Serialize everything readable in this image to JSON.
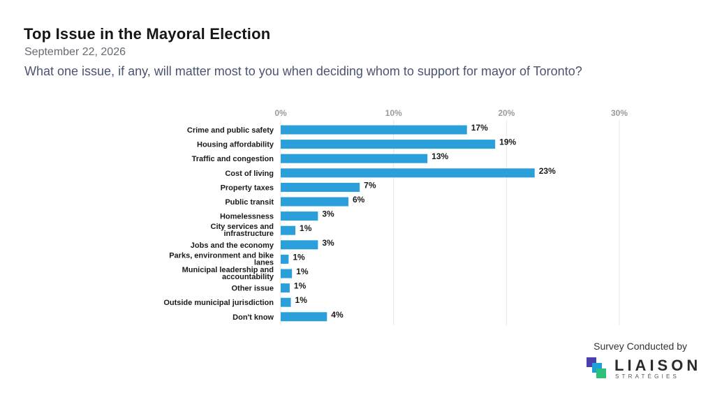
{
  "header": {
    "title": "Top Issue in the Mayoral Election",
    "date": "September 22, 2026",
    "question": "What one issue, if any, will matter most to you when deciding whom to support for mayor of Toronto?"
  },
  "chart_data": {
    "type": "bar",
    "orientation": "horizontal",
    "categories": [
      [
        "Crime and public safety"
      ],
      [
        "Housing affordability"
      ],
      [
        "Traffic and congestion"
      ],
      [
        "Cost of living"
      ],
      [
        "Property taxes"
      ],
      [
        "Public transit"
      ],
      [
        "Homelessness"
      ],
      [
        "City services and",
        "infrastructure"
      ],
      [
        "Jobs and the economy"
      ],
      [
        "Parks, environment and bike",
        "lanes"
      ],
      [
        "Municipal leadership and",
        "accountability"
      ],
      [
        "Other issue"
      ],
      [
        "Outside municipal jurisdiction"
      ],
      [
        "Don't know"
      ]
    ],
    "values": [
      16.5,
      19,
      13,
      22.5,
      7,
      6,
      3.3,
      1.3,
      3.3,
      0.7,
      1,
      0.8,
      0.9,
      4.1
    ],
    "value_labels": [
      "17%",
      "19%",
      "13%",
      "23%",
      "7%",
      "6%",
      "3%",
      "1%",
      "3%",
      "1%",
      "1%",
      "1%",
      "1%",
      "4%"
    ],
    "xlim": [
      0,
      30
    ],
    "xticks": [
      0,
      10,
      20,
      30
    ],
    "xtick_labels": [
      "0%",
      "10%",
      "20%",
      "30%"
    ],
    "axis_position": "top",
    "grid": true,
    "bar_color": "#2a9fd9",
    "grid_color": "#e6e6e6"
  },
  "footer": {
    "credit": "Survey Conducted by",
    "brand": "LIAISON",
    "brand_sub": "STRATÉGIES"
  }
}
